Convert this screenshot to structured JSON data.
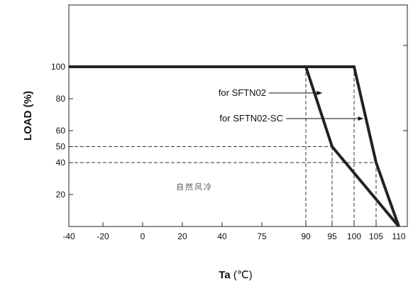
{
  "chart_data": {
    "type": "line",
    "xlabel": "Ta",
    "xunit": "(℃)",
    "ylabel": "LOAD (%)",
    "x_ticks": [
      "-40",
      "-20",
      "0",
      "20",
      "40",
      "75",
      "90",
      "95",
      "100",
      "105",
      "110"
    ],
    "y_ticks": [
      20,
      40,
      50,
      60,
      80,
      100
    ],
    "series": [
      {
        "points": [
          [
            "-40",
            100
          ],
          [
            "90",
            100
          ],
          [
            "95",
            50
          ],
          [
            "110",
            0
          ]
        ]
      },
      {
        "points": [
          [
            "-40",
            100
          ],
          [
            "100",
            100
          ],
          [
            "105",
            40
          ],
          [
            "110",
            0
          ]
        ]
      }
    ],
    "annotations": [
      {
        "text": "for SFTN02",
        "arrow_to": [
          "93",
          60
        ]
      },
      {
        "text": "for SFTN02-SC",
        "arrow_to": [
          "102",
          50
        ]
      },
      {
        "text": "自然风冷"
      }
    ],
    "reference_lines": [
      {
        "orientation": "horizontal",
        "y": 50,
        "x_to": "95"
      },
      {
        "orientation": "horizontal",
        "y": 40,
        "x_to": "105"
      },
      {
        "orientation": "vertical",
        "x": "90",
        "y_to": 100
      },
      {
        "orientation": "vertical",
        "x": "95",
        "y_to": 50
      },
      {
        "orientation": "vertical",
        "x": "100",
        "y_to": 100
      },
      {
        "orientation": "vertical",
        "x": "105",
        "y_to": 40
      }
    ],
    "ylim": [
      0,
      100
    ],
    "grid": false
  }
}
